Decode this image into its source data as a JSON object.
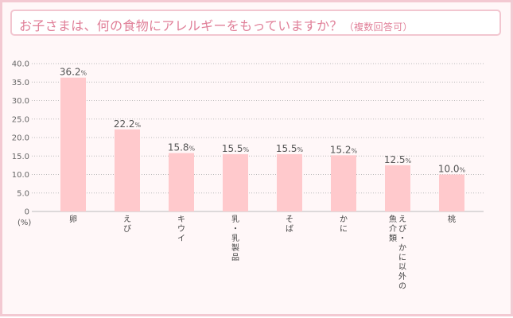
{
  "header": {
    "title": "お子さまは、何の食物にアレルギーをもっていますか？",
    "subtitle": "（複数回答可）"
  },
  "chart_data": {
    "type": "bar",
    "categories": [
      "卵",
      "えび",
      "キウイ",
      "乳・乳製品",
      "そば",
      "かに",
      "えび・かに以外の魚介類",
      "桃"
    ],
    "category_lines": [
      [
        "卵"
      ],
      [
        "えび"
      ],
      [
        "キウイ"
      ],
      [
        "乳・乳製品"
      ],
      [
        "そば"
      ],
      [
        "かに"
      ],
      [
        "えび・かに以外の",
        "魚介類"
      ],
      [
        "桃"
      ]
    ],
    "values": [
      36.2,
      22.2,
      15.8,
      15.5,
      15.5,
      15.2,
      12.5,
      10.0
    ],
    "value_labels": [
      "36.2",
      "22.2",
      "15.8",
      "15.5",
      "15.5",
      "15.2",
      "12.5",
      "10.0"
    ],
    "value_suffix": "%",
    "ylabel": "(%)",
    "ylim": [
      0,
      40
    ],
    "yticks": [
      0,
      5,
      10,
      15,
      20,
      25,
      30,
      35,
      40
    ],
    "ytick_labels": [
      "0",
      "5.0",
      "10.0",
      "15.0",
      "20.0",
      "25.0",
      "30.0",
      "35.0",
      "40.0"
    ],
    "grid": true,
    "bar_color": "#ffc9cc",
    "grid_color": "#bbbbbb",
    "title_color": "#e07f98"
  }
}
